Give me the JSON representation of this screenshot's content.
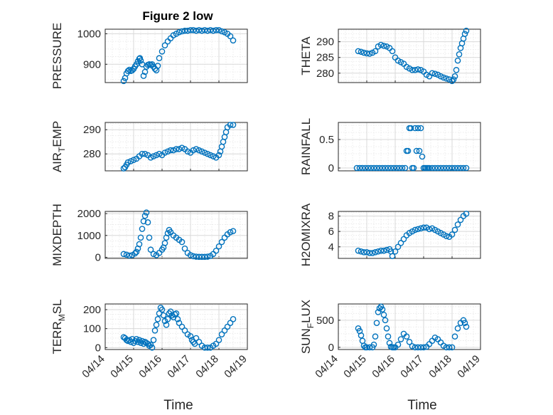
{
  "figure": {
    "title": "Figure 2 low",
    "xlabel": "Time"
  },
  "colors": {
    "marker": "#0072BD",
    "axis": "#262626",
    "grid": "#d9d9d9",
    "grid_minor": "#e6e6e6"
  },
  "x_tick_labels": [
    "04/14",
    "04/15",
    "04/16",
    "04/17",
    "04/18",
    "04/19"
  ],
  "chart_data": [
    {
      "type": "scatter",
      "ylabel": "PRESSURE",
      "title": "Figure 2 low",
      "ylim": [
        840,
        1015
      ],
      "yticks": [
        900,
        1000
      ],
      "ytick_labels": [
        "900",
        "1000"
      ],
      "x_range": [
        "04/14",
        "04/19"
      ],
      "series": [
        {
          "x": [
            14.65,
            14.7,
            14.75,
            14.8,
            14.85,
            14.9,
            14.95,
            15.0,
            15.05,
            15.1,
            15.15,
            15.2,
            15.22,
            15.25,
            15.3,
            15.35,
            15.4,
            15.45,
            15.5,
            15.55,
            15.6,
            15.65,
            15.7,
            15.75,
            15.8,
            15.85,
            15.9,
            16.0,
            16.1,
            16.2,
            16.3,
            16.4,
            16.5,
            16.6,
            16.7,
            16.8,
            16.9,
            17.0,
            17.1,
            17.2,
            17.3,
            17.4,
            17.5,
            17.6,
            17.7,
            17.8,
            17.9,
            18.0,
            18.1,
            18.2,
            18.3,
            18.4,
            18.5
          ],
          "y": [
            845,
            855,
            870,
            878,
            882,
            878,
            880,
            885,
            893,
            900,
            910,
            918,
            920,
            912,
            900,
            862,
            875,
            892,
            898,
            900,
            898,
            900,
            892,
            885,
            880,
            895,
            920,
            942,
            962,
            975,
            985,
            995,
            1000,
            1005,
            1008,
            1010,
            1010,
            1012,
            1012,
            1010,
            1012,
            1010,
            1012,
            1010,
            1012,
            1010,
            1012,
            1012,
            1008,
            1005,
            1000,
            992,
            978
          ]
        }
      ]
    },
    {
      "type": "scatter",
      "ylabel": "THETA",
      "ylim": [
        277,
        294
      ],
      "yticks": [
        280,
        285,
        290
      ],
      "ytick_labels": [
        "280",
        "285",
        "290"
      ],
      "x_range": [
        "04/14",
        "04/19"
      ],
      "series": [
        {
          "x": [
            14.7,
            14.8,
            14.9,
            15.0,
            15.1,
            15.2,
            15.3,
            15.4,
            15.5,
            15.6,
            15.7,
            15.8,
            15.9,
            16.0,
            16.1,
            16.2,
            16.3,
            16.4,
            16.5,
            16.6,
            16.7,
            16.8,
            16.9,
            17.0,
            17.1,
            17.2,
            17.3,
            17.4,
            17.5,
            17.6,
            17.7,
            17.8,
            17.9,
            18.0,
            18.05,
            18.1,
            18.15,
            18.2,
            18.25,
            18.3,
            18.35,
            18.4,
            18.45,
            18.5
          ],
          "y": [
            287,
            286.8,
            286.5,
            286.3,
            286.2,
            286.5,
            287,
            288.5,
            289,
            288.7,
            288.5,
            288,
            287,
            285,
            284,
            283.5,
            283,
            282,
            281.5,
            281,
            281,
            281.2,
            281,
            280.5,
            279.5,
            279,
            280,
            279.8,
            279.5,
            279,
            278.6,
            278.3,
            278,
            277.5,
            278,
            279,
            281,
            284,
            286,
            288,
            289.5,
            291,
            292.5,
            293.5
          ]
        }
      ]
    },
    {
      "type": "scatter",
      "ylabel": "AIR_TEMP",
      "ylim": [
        273,
        293
      ],
      "yticks": [
        280,
        290
      ],
      "ytick_labels": [
        "280",
        "290"
      ],
      "x_range": [
        "04/14",
        "04/19"
      ],
      "series": [
        {
          "x": [
            14.65,
            14.7,
            14.75,
            14.8,
            14.9,
            15.0,
            15.1,
            15.2,
            15.3,
            15.4,
            15.5,
            15.6,
            15.7,
            15.8,
            15.9,
            16.0,
            16.1,
            16.2,
            16.3,
            16.4,
            16.5,
            16.6,
            16.7,
            16.8,
            16.9,
            17.0,
            17.1,
            17.2,
            17.3,
            17.4,
            17.5,
            17.6,
            17.7,
            17.8,
            17.9,
            18.0,
            18.05,
            18.1,
            18.15,
            18.2,
            18.25,
            18.3,
            18.4,
            18.5
          ],
          "y": [
            274,
            274.5,
            275.5,
            276.5,
            277,
            277.5,
            278,
            279,
            280,
            280,
            279.5,
            278.5,
            279,
            279.5,
            280,
            279.5,
            280.5,
            281,
            281.5,
            281.5,
            282,
            282,
            282.5,
            282,
            281,
            280.5,
            281.5,
            282,
            281.5,
            281,
            280.5,
            280,
            279.5,
            279,
            278.5,
            279.5,
            281,
            283,
            285,
            287,
            289,
            291,
            292,
            292
          ]
        }
      ]
    },
    {
      "type": "scatter",
      "ylabel": "RAINFALL",
      "ylim": [
        -0.05,
        0.8
      ],
      "yticks": [
        0,
        0.5
      ],
      "ytick_labels": [
        "0",
        "0.5"
      ],
      "x_range": [
        "04/14",
        "04/19"
      ],
      "series": [
        {
          "x": [
            14.65,
            14.75,
            14.85,
            14.95,
            15.05,
            15.15,
            15.25,
            15.35,
            15.45,
            15.55,
            15.65,
            15.75,
            15.85,
            15.95,
            16.05,
            16.15,
            16.25,
            16.35,
            16.4,
            16.45,
            16.5,
            16.55,
            16.6,
            16.65,
            16.7,
            16.75,
            16.8,
            16.85,
            16.9,
            16.95,
            17.0,
            17.05,
            17.1,
            17.15,
            17.2,
            17.3,
            17.4,
            17.5,
            17.6,
            17.7,
            17.8,
            17.9,
            18.0,
            18.1,
            18.2,
            18.3,
            18.4,
            18.5
          ],
          "y": [
            0,
            0,
            0,
            0,
            0,
            0,
            0,
            0,
            0,
            0,
            0,
            0,
            0,
            0,
            0,
            0,
            0,
            0,
            0.3,
            0.3,
            0.7,
            0.7,
            0,
            0,
            0.7,
            0.3,
            0.7,
            0.3,
            0.7,
            0.2,
            0,
            0,
            0,
            0,
            0,
            0,
            0,
            0,
            0,
            0,
            0,
            0,
            0,
            0,
            0,
            0,
            0,
            0
          ]
        }
      ]
    },
    {
      "type": "scatter",
      "ylabel": "MIXDEPTH",
      "ylim": [
        -50,
        2100
      ],
      "yticks": [
        0,
        1000,
        2000
      ],
      "ytick_labels": [
        "0",
        "1000",
        "2000"
      ],
      "x_range": [
        "04/14",
        "04/19"
      ],
      "series": [
        {
          "x": [
            14.65,
            14.75,
            14.85,
            14.95,
            15.05,
            15.1,
            15.15,
            15.2,
            15.25,
            15.3,
            15.35,
            15.4,
            15.45,
            15.5,
            15.55,
            15.6,
            15.7,
            15.8,
            15.9,
            16.0,
            16.05,
            16.1,
            16.15,
            16.2,
            16.25,
            16.3,
            16.4,
            16.5,
            16.6,
            16.7,
            16.8,
            16.9,
            17.0,
            17.1,
            17.2,
            17.3,
            17.4,
            17.5,
            17.6,
            17.7,
            17.8,
            17.9,
            18.0,
            18.1,
            18.2,
            18.3,
            18.4,
            18.5
          ],
          "y": [
            150,
            120,
            80,
            100,
            180,
            250,
            400,
            600,
            900,
            1300,
            1650,
            1900,
            2050,
            1600,
            900,
            350,
            150,
            100,
            200,
            350,
            450,
            650,
            900,
            1100,
            1250,
            1150,
            1000,
            900,
            800,
            700,
            400,
            200,
            100,
            50,
            30,
            20,
            20,
            20,
            30,
            60,
            150,
            300,
            500,
            700,
            900,
            1050,
            1150,
            1200
          ]
        }
      ]
    },
    {
      "type": "scatter",
      "ylabel": "H2OMIXRA",
      "ylim": [
        2.5,
        8.6
      ],
      "yticks": [
        4,
        6,
        8
      ],
      "ytick_labels": [
        "4",
        "6",
        "8"
      ],
      "x_range": [
        "04/14",
        "04/19"
      ],
      "series": [
        {
          "x": [
            14.7,
            14.8,
            14.9,
            15.0,
            15.1,
            15.2,
            15.3,
            15.4,
            15.5,
            15.6,
            15.7,
            15.8,
            15.85,
            15.9,
            16.0,
            16.1,
            16.2,
            16.3,
            16.4,
            16.5,
            16.6,
            16.7,
            16.8,
            16.9,
            17.0,
            17.1,
            17.2,
            17.3,
            17.4,
            17.5,
            17.6,
            17.7,
            17.8,
            17.9,
            18.0,
            18.1,
            18.2,
            18.3,
            18.4,
            18.5
          ],
          "y": [
            3.5,
            3.4,
            3.3,
            3.3,
            3.2,
            3.2,
            3.3,
            3.4,
            3.5,
            3.5,
            3.6,
            3.7,
            3.4,
            2.8,
            3.4,
            4.0,
            4.5,
            5.0,
            5.5,
            5.8,
            6.0,
            6.2,
            6.3,
            6.4,
            6.5,
            6.5,
            6.3,
            6.4,
            6.2,
            6.0,
            5.8,
            5.6,
            5.4,
            5.3,
            5.6,
            6.2,
            6.9,
            7.5,
            8.0,
            8.3
          ]
        }
      ]
    },
    {
      "type": "scatter",
      "ylabel": "TERR_MSL",
      "ylim": [
        -10,
        230
      ],
      "yticks": [
        0,
        100,
        200
      ],
      "ytick_labels": [
        "0",
        "100",
        "200"
      ],
      "x_range": [
        "04/14",
        "04/19"
      ],
      "series": [
        {
          "x": [
            14.65,
            14.7,
            14.75,
            14.8,
            14.85,
            14.9,
            14.95,
            15.0,
            15.05,
            15.1,
            15.15,
            15.2,
            15.25,
            15.3,
            15.35,
            15.4,
            15.45,
            15.5,
            15.55,
            15.6,
            15.65,
            15.7,
            15.75,
            15.8,
            15.85,
            15.9,
            15.95,
            16.0,
            16.05,
            16.1,
            16.15,
            16.2,
            16.25,
            16.3,
            16.35,
            16.4,
            16.45,
            16.5,
            16.55,
            16.6,
            16.7,
            16.8,
            16.9,
            17.0,
            17.05,
            17.1,
            17.15,
            17.2,
            17.3,
            17.4,
            17.5,
            17.6,
            17.7,
            17.8,
            17.9,
            18.0,
            18.1,
            18.2,
            18.3,
            18.4,
            18.5
          ],
          "y": [
            55,
            50,
            40,
            35,
            40,
            30,
            45,
            25,
            35,
            45,
            30,
            40,
            25,
            35,
            20,
            30,
            25,
            20,
            10,
            15,
            0,
            40,
            90,
            120,
            150,
            180,
            210,
            200,
            170,
            140,
            120,
            150,
            180,
            190,
            170,
            160,
            175,
            180,
            150,
            130,
            110,
            90,
            70,
            60,
            40,
            30,
            20,
            50,
            30,
            10,
            0,
            0,
            0,
            10,
            20,
            40,
            70,
            90,
            110,
            130,
            150
          ]
        }
      ]
    },
    {
      "type": "scatter",
      "ylabel": "SUN_FLUX",
      "ylim": [
        -40,
        800
      ],
      "yticks": [
        0,
        500
      ],
      "ytick_labels": [
        "0",
        "500"
      ],
      "x_range": [
        "04/14",
        "04/19"
      ],
      "series": [
        {
          "x": [
            14.7,
            14.75,
            14.8,
            14.85,
            14.9,
            14.95,
            15.0,
            15.1,
            15.2,
            15.25,
            15.3,
            15.35,
            15.4,
            15.45,
            15.5,
            15.55,
            15.6,
            15.65,
            15.7,
            15.75,
            15.8,
            15.85,
            15.9,
            15.95,
            16.0,
            16.1,
            16.2,
            16.3,
            16.4,
            16.5,
            16.6,
            16.7,
            16.8,
            16.9,
            17.0,
            17.1,
            17.2,
            17.3,
            17.4,
            17.5,
            17.6,
            17.7,
            17.8,
            17.9,
            18.0,
            18.1,
            18.2,
            18.3,
            18.4,
            18.45,
            18.5
          ],
          "y": [
            350,
            300,
            220,
            120,
            30,
            0,
            0,
            0,
            0,
            50,
            200,
            450,
            650,
            720,
            750,
            700,
            600,
            500,
            350,
            200,
            80,
            10,
            0,
            0,
            0,
            50,
            150,
            250,
            200,
            100,
            20,
            0,
            0,
            0,
            0,
            10,
            60,
            120,
            180,
            150,
            90,
            30,
            0,
            0,
            0,
            200,
            350,
            450,
            500,
            450,
            380
          ]
        }
      ]
    }
  ]
}
